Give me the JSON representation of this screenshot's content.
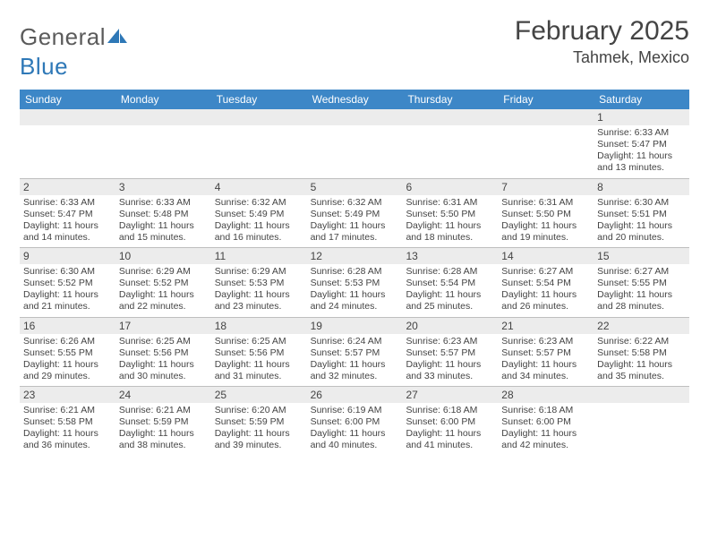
{
  "logo": {
    "part1": "General",
    "part2": "Blue"
  },
  "title": "February 2025",
  "location": "Tahmek, Mexico",
  "colors": {
    "header_bar": "#3d87c7",
    "daynum_bg": "#ececec",
    "logo_gray": "#5b5b5b",
    "logo_blue": "#2e78b7",
    "text": "#444444",
    "rule": "#bfbfbf",
    "background": "#ffffff"
  },
  "weekdays": [
    "Sunday",
    "Monday",
    "Tuesday",
    "Wednesday",
    "Thursday",
    "Friday",
    "Saturday"
  ],
  "layout": {
    "first_weekday_index": 6,
    "num_days": 28,
    "columns": 7
  },
  "days": [
    {
      "n": 1,
      "sunrise": "6:33 AM",
      "sunset": "5:47 PM",
      "daylight": "11 hours and 13 minutes."
    },
    {
      "n": 2,
      "sunrise": "6:33 AM",
      "sunset": "5:47 PM",
      "daylight": "11 hours and 14 minutes."
    },
    {
      "n": 3,
      "sunrise": "6:33 AM",
      "sunset": "5:48 PM",
      "daylight": "11 hours and 15 minutes."
    },
    {
      "n": 4,
      "sunrise": "6:32 AM",
      "sunset": "5:49 PM",
      "daylight": "11 hours and 16 minutes."
    },
    {
      "n": 5,
      "sunrise": "6:32 AM",
      "sunset": "5:49 PM",
      "daylight": "11 hours and 17 minutes."
    },
    {
      "n": 6,
      "sunrise": "6:31 AM",
      "sunset": "5:50 PM",
      "daylight": "11 hours and 18 minutes."
    },
    {
      "n": 7,
      "sunrise": "6:31 AM",
      "sunset": "5:50 PM",
      "daylight": "11 hours and 19 minutes."
    },
    {
      "n": 8,
      "sunrise": "6:30 AM",
      "sunset": "5:51 PM",
      "daylight": "11 hours and 20 minutes."
    },
    {
      "n": 9,
      "sunrise": "6:30 AM",
      "sunset": "5:52 PM",
      "daylight": "11 hours and 21 minutes."
    },
    {
      "n": 10,
      "sunrise": "6:29 AM",
      "sunset": "5:52 PM",
      "daylight": "11 hours and 22 minutes."
    },
    {
      "n": 11,
      "sunrise": "6:29 AM",
      "sunset": "5:53 PM",
      "daylight": "11 hours and 23 minutes."
    },
    {
      "n": 12,
      "sunrise": "6:28 AM",
      "sunset": "5:53 PM",
      "daylight": "11 hours and 24 minutes."
    },
    {
      "n": 13,
      "sunrise": "6:28 AM",
      "sunset": "5:54 PM",
      "daylight": "11 hours and 25 minutes."
    },
    {
      "n": 14,
      "sunrise": "6:27 AM",
      "sunset": "5:54 PM",
      "daylight": "11 hours and 26 minutes."
    },
    {
      "n": 15,
      "sunrise": "6:27 AM",
      "sunset": "5:55 PM",
      "daylight": "11 hours and 28 minutes."
    },
    {
      "n": 16,
      "sunrise": "6:26 AM",
      "sunset": "5:55 PM",
      "daylight": "11 hours and 29 minutes."
    },
    {
      "n": 17,
      "sunrise": "6:25 AM",
      "sunset": "5:56 PM",
      "daylight": "11 hours and 30 minutes."
    },
    {
      "n": 18,
      "sunrise": "6:25 AM",
      "sunset": "5:56 PM",
      "daylight": "11 hours and 31 minutes."
    },
    {
      "n": 19,
      "sunrise": "6:24 AM",
      "sunset": "5:57 PM",
      "daylight": "11 hours and 32 minutes."
    },
    {
      "n": 20,
      "sunrise": "6:23 AM",
      "sunset": "5:57 PM",
      "daylight": "11 hours and 33 minutes."
    },
    {
      "n": 21,
      "sunrise": "6:23 AM",
      "sunset": "5:57 PM",
      "daylight": "11 hours and 34 minutes."
    },
    {
      "n": 22,
      "sunrise": "6:22 AM",
      "sunset": "5:58 PM",
      "daylight": "11 hours and 35 minutes."
    },
    {
      "n": 23,
      "sunrise": "6:21 AM",
      "sunset": "5:58 PM",
      "daylight": "11 hours and 36 minutes."
    },
    {
      "n": 24,
      "sunrise": "6:21 AM",
      "sunset": "5:59 PM",
      "daylight": "11 hours and 38 minutes."
    },
    {
      "n": 25,
      "sunrise": "6:20 AM",
      "sunset": "5:59 PM",
      "daylight": "11 hours and 39 minutes."
    },
    {
      "n": 26,
      "sunrise": "6:19 AM",
      "sunset": "6:00 PM",
      "daylight": "11 hours and 40 minutes."
    },
    {
      "n": 27,
      "sunrise": "6:18 AM",
      "sunset": "6:00 PM",
      "daylight": "11 hours and 41 minutes."
    },
    {
      "n": 28,
      "sunrise": "6:18 AM",
      "sunset": "6:00 PM",
      "daylight": "11 hours and 42 minutes."
    }
  ],
  "labels": {
    "sunrise": "Sunrise:",
    "sunset": "Sunset:",
    "daylight": "Daylight:"
  },
  "typography": {
    "title_fontsize": 30,
    "location_fontsize": 18,
    "weekday_fontsize": 12,
    "daynum_fontsize": 12,
    "body_fontsize": 10.5,
    "logo_fontsize": 26
  }
}
